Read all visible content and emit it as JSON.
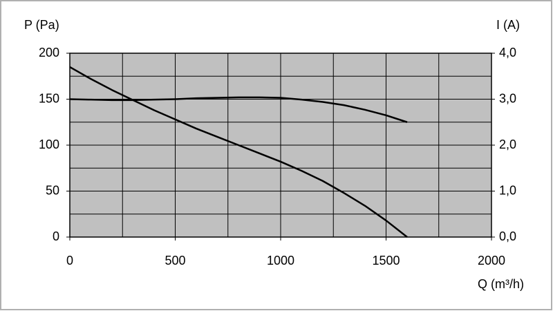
{
  "chart_data": {
    "type": "line",
    "ylabel": "P (Pa)",
    "y2label": "I (A)",
    "xlabel": "Q (m³/h)",
    "x": [
      0,
      100,
      200,
      300,
      400,
      500,
      600,
      700,
      800,
      900,
      1000,
      1100,
      1200,
      1300,
      1400,
      1500,
      1600
    ],
    "series": [
      {
        "color": "#000000",
        "values": [
          185,
          172,
          160,
          149,
          138,
          128,
          118,
          109,
          100,
          91,
          82,
          72,
          61,
          48,
          34,
          18,
          0
        ]
      },
      {
        "color": "#000000",
        "axis": "y2",
        "values": [
          3.0,
          2.99,
          2.98,
          2.98,
          2.99,
          3.0,
          3.02,
          3.03,
          3.04,
          3.04,
          3.03,
          2.99,
          2.94,
          2.87,
          2.77,
          2.65,
          2.5
        ]
      }
    ],
    "xlim": [
      0,
      2000
    ],
    "xticks": [
      0,
      500,
      1000,
      1500,
      2000
    ],
    "xgrid": [
      0,
      250,
      500,
      750,
      1000,
      1250,
      1500,
      1750,
      2000
    ],
    "ylim": [
      0,
      200
    ],
    "yticks": [
      0,
      50,
      100,
      150,
      200
    ],
    "ygrid": [
      0,
      25,
      50,
      75,
      100,
      125,
      150,
      175,
      200
    ],
    "y2lim": [
      0,
      4
    ],
    "y2ticks": [
      {
        "value": 0,
        "label": "0,0"
      },
      {
        "value": 1,
        "label": "1,0"
      },
      {
        "value": 2,
        "label": "2,0"
      },
      {
        "value": 3,
        "label": "3,0"
      },
      {
        "value": 4,
        "label": "4,0"
      }
    ],
    "grid": true,
    "plot_background": "#c0c0c0"
  }
}
